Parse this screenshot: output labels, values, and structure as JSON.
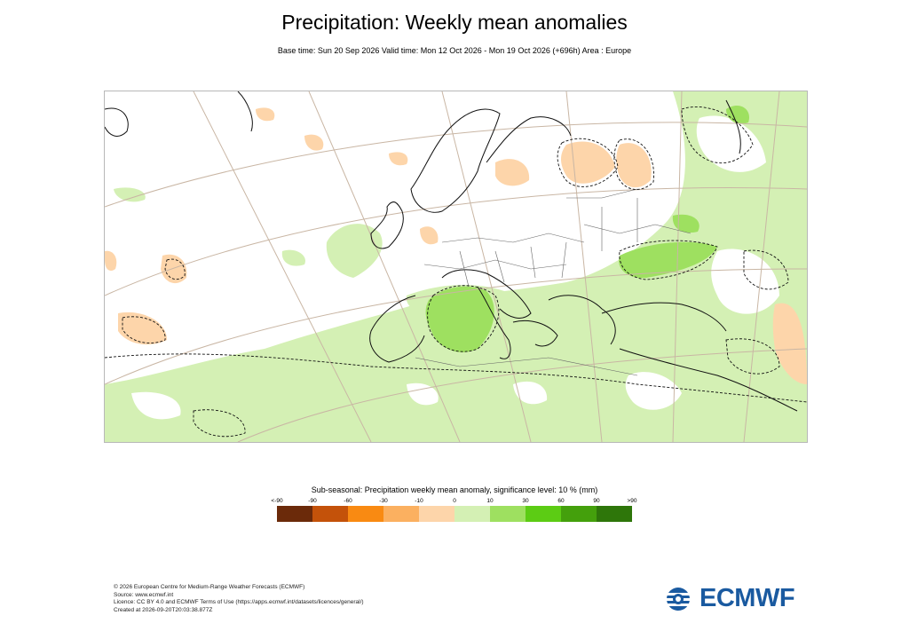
{
  "header": {
    "title": "Precipitation: Weekly mean anomalies",
    "subtitle": "Base time: Sun 20 Sep 2026 Valid time: Mon 12 Oct 2026 - Mon 19 Oct 2026 (+696h) Area : Europe"
  },
  "legend": {
    "title": "Sub-seasonal: Precipitation weekly mean anomaly, significance level: 10 % (mm)",
    "labels": [
      "<-90",
      "-90",
      "-60",
      "-30",
      "-10",
      "0",
      "10",
      "30",
      "60",
      "90",
      ">90"
    ],
    "colors": [
      "#6b2a0a",
      "#c4520a",
      "#f98a12",
      "#fbb060",
      "#fdd5aa",
      "#d4f0b4",
      "#9ee060",
      "#5ccc14",
      "#44a00c",
      "#2e760a"
    ]
  },
  "footer": {
    "lines": [
      "© 2026 European Centre for Medium-Range Weather Forecasts (ECMWF)",
      "Source: www.ecmwf.int",
      "Licence: CC BY 4.0 and ECMWF Terms of Use (https://apps.ecmwf.int/datasets/licences/general/)",
      "Created at 2026-09-20T20:03:38.877Z"
    ]
  },
  "logo": {
    "text": "ECMWF",
    "color": "#1a5aa0"
  }
}
